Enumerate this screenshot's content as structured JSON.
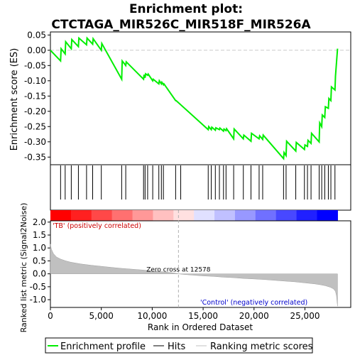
{
  "chart_data": {
    "type": "line",
    "title": "Enrichment plot:",
    "subtitle": "CTCTAGA_MIR526C_MIR518F_MIR526A",
    "xlabel": "Rank in Ordered Dataset",
    "es_panel": {
      "ylabel": "Enrichment score (ES)",
      "ylim": [
        -0.375,
        0.06
      ],
      "yticks": [
        "0.05",
        "0.00",
        "-0.05",
        "-0.10",
        "-0.15",
        "-0.20",
        "-0.25",
        "-0.30",
        "-0.35"
      ],
      "ytick_values": [
        0.05,
        0.0,
        -0.05,
        -0.1,
        -0.15,
        -0.2,
        -0.25,
        -0.3,
        -0.35
      ],
      "series": [
        {
          "name": "Enrichment profile",
          "color": "#00ee00",
          "x": [
            0,
            1000,
            1050,
            1450,
            1500,
            2050,
            2100,
            2750,
            2800,
            3550,
            3600,
            4150,
            4200,
            5000,
            5050,
            7000,
            7050,
            7400,
            7450,
            9150,
            9200,
            9300,
            9350,
            9550,
            9600,
            10050,
            10100,
            10650,
            10700,
            10900,
            10950,
            11100,
            11150,
            12300,
            12350,
            15500,
            15550,
            15800,
            15850,
            16200,
            16250,
            16600,
            16650,
            17000,
            17050,
            17250,
            17300,
            18000,
            18050,
            18950,
            19000,
            19700,
            19750,
            20500,
            20550,
            20850,
            20900,
            22900,
            22950,
            23150,
            23200,
            24100,
            24150,
            24950,
            25000,
            25250,
            25300,
            25600,
            25650,
            26400,
            26450,
            26650,
            26700,
            26950,
            27000,
            27300,
            27350,
            27550,
            27600,
            27950,
            28000,
            28200
          ],
          "y": [
            0.0,
            -0.035,
            0.005,
            -0.012,
            0.028,
            0.005,
            0.035,
            0.012,
            0.04,
            0.018,
            0.04,
            0.02,
            0.038,
            0.0,
            0.022,
            -0.095,
            -0.035,
            -0.05,
            -0.038,
            -0.095,
            -0.08,
            -0.09,
            -0.077,
            -0.082,
            -0.078,
            -0.1,
            -0.095,
            -0.11,
            -0.1,
            -0.11,
            -0.105,
            -0.113,
            -0.11,
            -0.165,
            -0.165,
            -0.26,
            -0.25,
            -0.26,
            -0.252,
            -0.262,
            -0.254,
            -0.26,
            -0.255,
            -0.265,
            -0.258,
            -0.263,
            -0.257,
            -0.29,
            -0.258,
            -0.29,
            -0.278,
            -0.298,
            -0.272,
            -0.29,
            -0.28,
            -0.292,
            -0.278,
            -0.355,
            -0.335,
            -0.345,
            -0.298,
            -0.33,
            -0.302,
            -0.325,
            -0.31,
            -0.315,
            -0.295,
            -0.305,
            -0.272,
            -0.3,
            -0.238,
            -0.25,
            -0.212,
            -0.22,
            -0.185,
            -0.19,
            -0.158,
            -0.165,
            -0.12,
            -0.13,
            -0.085,
            0.005
          ]
        }
      ]
    },
    "hits_x": [
      1000,
      1450,
      2050,
      2750,
      3550,
      4150,
      5000,
      7000,
      7400,
      9150,
      9300,
      9550,
      10050,
      10650,
      10900,
      11100,
      12300,
      12800,
      15500,
      15800,
      16200,
      16600,
      17000,
      17250,
      18000,
      18950,
      19700,
      20500,
      20850,
      22900,
      23150,
      24100,
      24950,
      25250,
      25600,
      26400,
      26650,
      26950,
      27300,
      27550,
      27950
    ],
    "bar_colors": [
      "#ff0000",
      "#ff2020",
      "#ff4848",
      "#ff7070",
      "#ff9898",
      "#ffc0c0",
      "#ffe0e0",
      "#e0e0ff",
      "#c0c0ff",
      "#9898ff",
      "#7070ff",
      "#4848ff",
      "#2020ff",
      "#0000ff"
    ],
    "metric_panel": {
      "ylabel": "Ranked list metric (Signal2Noise)",
      "ylim": [
        -1.3,
        2.05
      ],
      "yticks": [
        "2.0",
        "1.5",
        "1.0",
        "0.5",
        "0.0",
        "-0.5",
        "-1.0"
      ],
      "ytick_values": [
        2.0,
        1.5,
        1.0,
        0.5,
        0.0,
        -0.5,
        -1.0
      ],
      "x": [
        0,
        100,
        300,
        600,
        1000,
        1500,
        2000,
        3000,
        4000,
        5000,
        6000,
        7000,
        8000,
        9000,
        10000,
        11000,
        12000,
        12578,
        13000,
        14000,
        15000,
        16000,
        17000,
        18000,
        19000,
        20000,
        21000,
        22000,
        23000,
        24000,
        25000,
        26000,
        26500,
        27000,
        27500,
        27800,
        28000,
        28100,
        28200
      ],
      "values": [
        1.15,
        0.95,
        0.78,
        0.65,
        0.57,
        0.5,
        0.45,
        0.38,
        0.33,
        0.29,
        0.25,
        0.21,
        0.18,
        0.15,
        0.11,
        0.08,
        0.04,
        0.0,
        -0.02,
        -0.05,
        -0.08,
        -0.1,
        -0.13,
        -0.15,
        -0.18,
        -0.2,
        -0.22,
        -0.25,
        -0.28,
        -0.31,
        -0.35,
        -0.39,
        -0.42,
        -0.46,
        -0.52,
        -0.58,
        -0.68,
        -0.85,
        -1.25
      ],
      "annotation_zero": "Zero cross at 12578",
      "label_pos": "'TB' (positively correlated)",
      "label_neg": "'Control' (negatively correlated)"
    },
    "xlim": [
      0,
      29500
    ],
    "xticks": [
      "0",
      "5,000",
      "10,000",
      "15,000",
      "20,000",
      "25,000"
    ],
    "xtick_values": [
      0,
      5000,
      10000,
      15000,
      20000,
      25000
    ],
    "zero_cross": 12578,
    "legend": {
      "placement": "bottom",
      "entries": [
        {
          "label": "Enrichment profile",
          "color": "#00ee00"
        },
        {
          "label": "Hits",
          "color": "#000000"
        },
        {
          "label": "Ranking metric scores",
          "color": "#c0c0c0"
        }
      ]
    }
  }
}
